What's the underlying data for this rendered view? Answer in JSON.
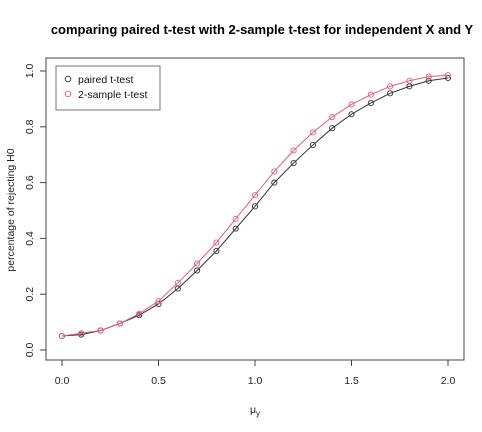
{
  "chart_data": {
    "type": "line",
    "title": "comparing paired t-test with 2-sample t-test for independent X and Y",
    "xlabel": "μ_y",
    "ylabel": "percentage of rejecting H0",
    "xlim": [
      0,
      2
    ],
    "ylim": [
      0,
      1
    ],
    "x_ticks": [
      "0.0",
      "0.5",
      "1.0",
      "1.5",
      "2.0"
    ],
    "y_ticks": [
      "0.0",
      "0.2",
      "0.4",
      "0.6",
      "0.8",
      "1.0"
    ],
    "grid": false,
    "legend_position": "top-left",
    "x": [
      0.0,
      0.1,
      0.2,
      0.3,
      0.4,
      0.5,
      0.6,
      0.7,
      0.8,
      0.9,
      1.0,
      1.1,
      1.2,
      1.3,
      1.4,
      1.5,
      1.6,
      1.7,
      1.8,
      1.9,
      2.0
    ],
    "series": [
      {
        "name": "paired t-test",
        "color": "#333333",
        "marker": "circle",
        "values": [
          0.05,
          0.055,
          0.07,
          0.095,
          0.125,
          0.165,
          0.22,
          0.285,
          0.355,
          0.435,
          0.515,
          0.6,
          0.67,
          0.735,
          0.795,
          0.845,
          0.885,
          0.92,
          0.945,
          0.965,
          0.975
        ]
      },
      {
        "name": "2-sample t-test",
        "color": "#e0607a",
        "marker": "circle",
        "values": [
          0.05,
          0.06,
          0.07,
          0.095,
          0.13,
          0.175,
          0.24,
          0.31,
          0.385,
          0.47,
          0.555,
          0.64,
          0.715,
          0.78,
          0.835,
          0.88,
          0.915,
          0.945,
          0.965,
          0.98,
          0.985
        ]
      }
    ]
  }
}
